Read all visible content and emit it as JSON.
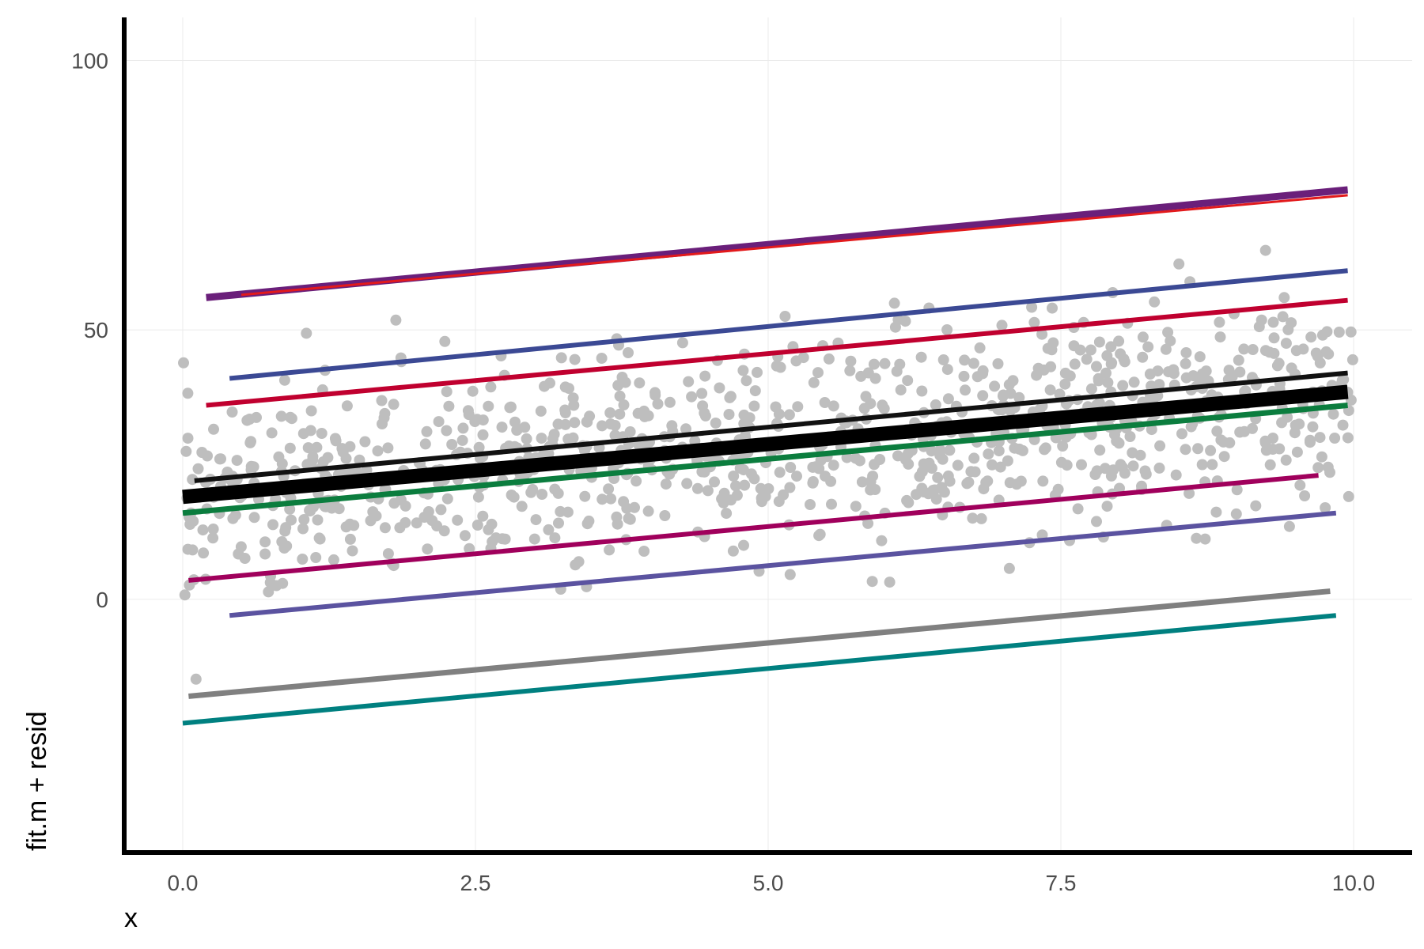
{
  "chart_data": {
    "type": "scatter",
    "xlabel": "x",
    "ylabel": "fit.m + resid",
    "xlim": [
      -0.5,
      10.5
    ],
    "ylim": [
      -47,
      108
    ],
    "x_ticks": [
      0.0,
      2.5,
      5.0,
      7.5,
      10.0
    ],
    "x_tick_labels": [
      "0.0",
      "2.5",
      "5.0",
      "7.5",
      "10.0"
    ],
    "y_ticks": [
      0,
      50,
      100
    ],
    "y_tick_labels": [
      "0",
      "50",
      "100"
    ],
    "grid": true,
    "points": {
      "color": "#bebebe",
      "count": 1000,
      "trend": {
        "intercept": 18,
        "slope": 2.1
      },
      "x_range": [
        0,
        10
      ],
      "residual_sd": 9.5
    },
    "lines": [
      {
        "color": "#6a1f7a",
        "x": [
          0.2,
          9.95
        ],
        "y": [
          56,
          76
        ],
        "width": 9
      },
      {
        "color": "#e21a1c",
        "x": [
          0.5,
          9.95
        ],
        "y": [
          56.5,
          75
        ],
        "width": 3
      },
      {
        "color": "#3b4994",
        "x": [
          0.4,
          9.95
        ],
        "y": [
          41,
          61
        ],
        "width": 6
      },
      {
        "color": "#c0002f",
        "x": [
          0.2,
          9.95
        ],
        "y": [
          36,
          55.5
        ],
        "width": 6
      },
      {
        "color": "#111111",
        "x": [
          0.1,
          9.95
        ],
        "y": [
          22,
          42
        ],
        "width": 6
      },
      {
        "color": "#000000",
        "x": [
          0.0,
          9.95
        ],
        "y": [
          19,
          38.5
        ],
        "width": 18
      },
      {
        "color": "#0b7d3e",
        "x": [
          0.0,
          9.95
        ],
        "y": [
          16,
          36
        ],
        "width": 7
      },
      {
        "color": "#a0005c",
        "x": [
          0.05,
          9.7
        ],
        "y": [
          3.5,
          23
        ],
        "width": 6
      },
      {
        "color": "#5b53a0",
        "x": [
          0.4,
          9.85
        ],
        "y": [
          -3,
          16
        ],
        "width": 6
      },
      {
        "color": "#808080",
        "x": [
          0.05,
          9.8
        ],
        "y": [
          -18,
          1.5
        ],
        "width": 7
      },
      {
        "color": "#008080",
        "x": [
          0.0,
          9.85
        ],
        "y": [
          -23,
          -3
        ],
        "width": 6
      }
    ]
  }
}
